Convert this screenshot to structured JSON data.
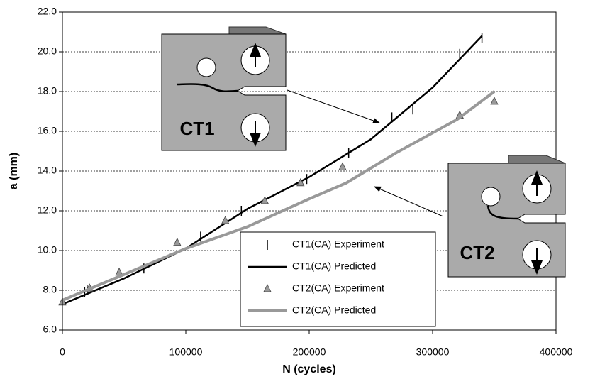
{
  "chart_data": {
    "type": "line",
    "xlabel": "N (cycles)",
    "ylabel": "a (mm)",
    "xlim": [
      0,
      400000
    ],
    "xticks": [
      0,
      100000,
      200000,
      300000,
      400000
    ],
    "ylim": [
      6,
      22
    ],
    "yticks": [
      {
        "value": 6,
        "label": "6.0"
      },
      {
        "value": 8,
        "label": "8.0"
      },
      {
        "value": 10,
        "label": "10.0"
      },
      {
        "value": 12,
        "label": "12.0"
      },
      {
        "value": 14,
        "label": "14.0"
      },
      {
        "value": 16,
        "label": "16.0"
      },
      {
        "value": 18,
        "label": "18.0"
      },
      {
        "value": 20,
        "label": "20.0"
      },
      {
        "value": 22,
        "label": "22.0"
      }
    ],
    "grid": true,
    "annotations": [
      "CT1",
      "CT2"
    ],
    "series": [
      {
        "name": "CT1(CA) Experiment",
        "kind": "scatter",
        "marker": "tick",
        "color": "#000000",
        "x": [
          18000,
          20000,
          66000,
          112000,
          145000,
          198000,
          232000,
          267000,
          284000,
          322000,
          340000
        ],
        "values": [
          7.9,
          8.0,
          9.1,
          10.7,
          12.0,
          13.6,
          14.9,
          16.7,
          17.1,
          19.9,
          20.7
        ]
      },
      {
        "name": "CT1(CA) Predicted",
        "kind": "line",
        "color": "#000000",
        "x": [
          0,
          50000,
          100000,
          150000,
          200000,
          250000,
          300000,
          340000
        ],
        "values": [
          7.3,
          8.6,
          10.1,
          12.1,
          13.7,
          15.6,
          18.2,
          20.8
        ]
      },
      {
        "name": "CT2(CA) Experiment",
        "kind": "scatter",
        "marker": "triangle",
        "color": "#999999",
        "x": [
          0,
          22000,
          46000,
          93000,
          132000,
          164000,
          193000,
          227000,
          322000,
          350000
        ],
        "values": [
          7.4,
          8.1,
          8.9,
          10.4,
          11.5,
          12.5,
          13.4,
          14.2,
          16.8,
          17.5
        ]
      },
      {
        "name": "CT2(CA) Predicted",
        "kind": "line",
        "color": "#999999",
        "x": [
          0,
          50000,
          100000,
          150000,
          200000,
          230000,
          270000,
          320000,
          350000
        ],
        "values": [
          7.5,
          8.8,
          10.1,
          11.2,
          12.6,
          13.4,
          14.9,
          16.6,
          18.0
        ]
      }
    ]
  }
}
